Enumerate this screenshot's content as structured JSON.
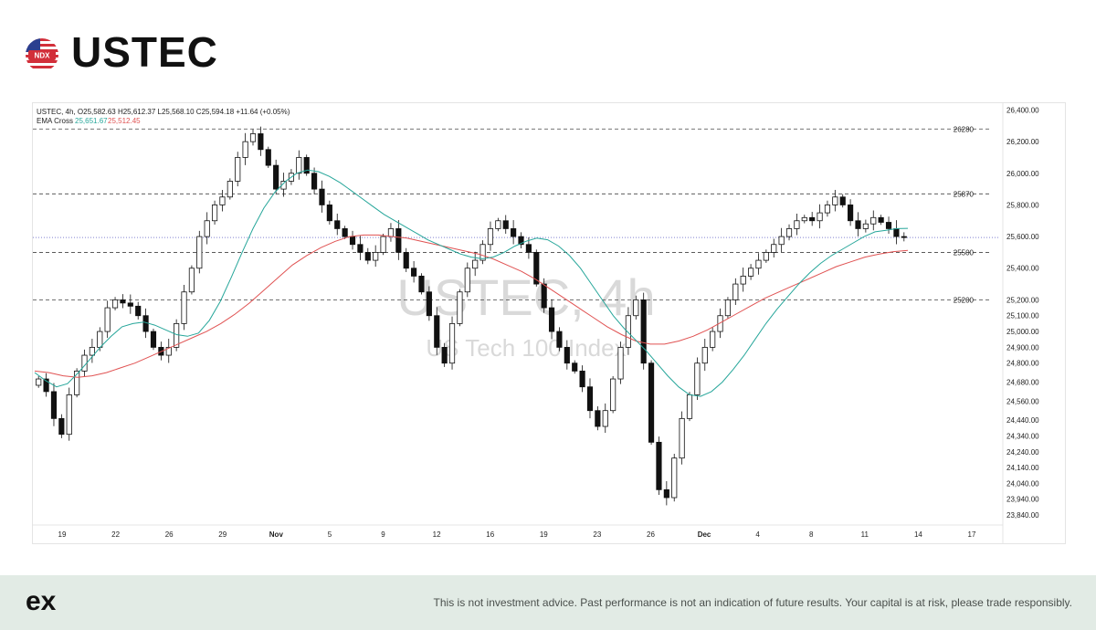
{
  "header": {
    "title": "USTEC",
    "flag_badge": "NDX",
    "flag_icon": "us-flag-icon"
  },
  "chart_data": {
    "type": "candlestick",
    "info_line": "USTEC, 4h,  O25,582.63  H25,612.37  L25,568.10  C25,594.18  +11.64 (+0.05%)",
    "indicator_label": "EMA Cross",
    "ema_fast_value": "25,651.67",
    "ema_slow_value": "25,512.45",
    "watermark_symbol": "USTEC, 4h",
    "watermark_name": "US Tech 100 Index",
    "ylim": [
      23800,
      26420
    ],
    "y_ticks": [
      "26,400.00",
      "26,200.00",
      "26,000.00",
      "25,800.00",
      "25,600.00",
      "25,400.00",
      "25,200.00",
      "25,100.00",
      "25,000.00",
      "24,900.00",
      "24,800.00",
      "24,680.00",
      "24,560.00",
      "24,440.00",
      "24,340.00",
      "24,240.00",
      "24,140.00",
      "24,040.00",
      "23,940.00",
      "23,840.00"
    ],
    "x_ticks": [
      "19",
      "22",
      "26",
      "29",
      "Nov",
      "5",
      "9",
      "12",
      "16",
      "19",
      "23",
      "26",
      "Dec",
      "4",
      "8",
      "11",
      "14",
      "17"
    ],
    "levels": [
      {
        "label": "26280",
        "value": 26280
      },
      {
        "label": "25870",
        "value": 25870
      },
      {
        "label": "25500",
        "value": 25500
      },
      {
        "label": "25200",
        "value": 25200
      }
    ],
    "current_price": 25594.18,
    "series": [
      {
        "name": "Price (close)",
        "values": [
          24700,
          24620,
          24450,
          24350,
          24600,
          24750,
          24850,
          24900,
          25000,
          25150,
          25200,
          25180,
          25160,
          25100,
          25000,
          24900,
          24850,
          24900,
          25050,
          25250,
          25400,
          25600,
          25700,
          25800,
          25850,
          25950,
          26100,
          26200,
          26250,
          26150,
          26050,
          25900,
          25950,
          26000,
          26100,
          26000,
          25900,
          25800,
          25700,
          25650,
          25600,
          25550,
          25500,
          25450,
          25500,
          25600,
          25650,
          25500,
          25400,
          25350,
          25250,
          25100,
          24900,
          24800,
          25050,
          25250,
          25400,
          25450,
          25550,
          25650,
          25700,
          25650,
          25600,
          25550,
          25500,
          25300,
          25150,
          25000,
          24900,
          24800,
          24750,
          24650,
          24500,
          24400,
          24500,
          24700,
          24900,
          25100,
          25200,
          24800,
          24300,
          24000,
          23950,
          24200,
          24450,
          24600,
          24800,
          24900,
          25000,
          25100,
          25200,
          25300,
          25350,
          25400,
          25450,
          25500,
          25550,
          25600,
          25650,
          25700,
          25720,
          25700,
          25750,
          25800,
          25850,
          25800,
          25700,
          25650,
          25680,
          25720,
          25690,
          25650,
          25600,
          25594
        ]
      },
      {
        "name": "EMA fast",
        "values": [
          24740,
          24690,
          24650,
          24670,
          24740,
          24820,
          24900,
          24970,
          25030,
          25050,
          25060,
          25040,
          25010,
          24980,
          24970,
          24990,
          25070,
          25190,
          25340,
          25500,
          25650,
          25780,
          25880,
          25950,
          26000,
          26020,
          26010,
          25980,
          25940,
          25890,
          25840,
          25790,
          25740,
          25700,
          25660,
          25620,
          25580,
          25550,
          25520,
          25490,
          25470,
          25460,
          25470,
          25500,
          25540,
          25570,
          25590,
          25580,
          25540,
          25480,
          25400,
          25300,
          25200,
          25100,
          25020,
          24950,
          24880,
          24800,
          24720,
          24650,
          24600,
          24590,
          24620,
          24680,
          24760,
          24850,
          24950,
          25050,
          25140,
          25220,
          25300,
          25370,
          25430,
          25480,
          25520,
          25560,
          25600,
          25630,
          25640,
          25650,
          25651.67
        ]
      },
      {
        "name": "EMA slow",
        "values": [
          24750,
          24740,
          24720,
          24710,
          24720,
          24740,
          24770,
          24800,
          24840,
          24880,
          24920,
          24960,
          25000,
          25050,
          25110,
          25180,
          25260,
          25340,
          25420,
          25480,
          25530,
          25570,
          25600,
          25610,
          25610,
          25600,
          25590,
          25570,
          25550,
          25530,
          25510,
          25490,
          25460,
          25420,
          25380,
          25330,
          25270,
          25210,
          25150,
          25090,
          25030,
          24980,
          24940,
          24920,
          24920,
          24940,
          24970,
          25010,
          25060,
          25110,
          25160,
          25210,
          25250,
          25290,
          25330,
          25370,
          25410,
          25440,
          25470,
          25490,
          25505,
          25512.45
        ]
      }
    ]
  },
  "footer": {
    "logo_text": "ex",
    "disclaimer": "This is not investment advice. Past performance is not an indication of future results. Your capital is at risk, please trade responsibly."
  }
}
